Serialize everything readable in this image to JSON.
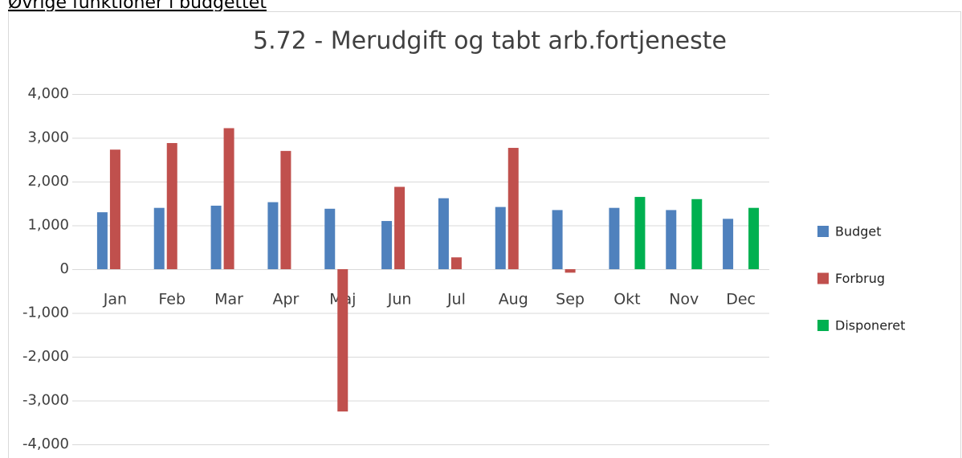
{
  "heading": "Øvrige funktioner i budgettet",
  "chart_data": {
    "type": "bar",
    "title": "5.72 - Merudgift og tabt arb.fortjeneste",
    "categories": [
      "Jan",
      "Feb",
      "Mar",
      "Apr",
      "Maj",
      "Jun",
      "Jul",
      "Aug",
      "Sep",
      "Okt",
      "Nov",
      "Dec"
    ],
    "series": [
      {
        "name": "Budget",
        "color": "#4f81bd",
        "values": [
          1300,
          1400,
          1450,
          1530,
          1380,
          1100,
          1620,
          1420,
          1350,
          1400,
          1350,
          1150
        ]
      },
      {
        "name": "Forbrug",
        "color": "#c0504d",
        "values": [
          2730,
          2880,
          3220,
          2700,
          -3250,
          1880,
          270,
          2770,
          -80,
          null,
          null,
          null
        ]
      },
      {
        "name": "Disponeret",
        "color": "#00b050",
        "values": [
          null,
          null,
          null,
          null,
          null,
          null,
          null,
          null,
          null,
          1650,
          1600,
          1400
        ]
      }
    ],
    "ylim": [
      -4000,
      4000
    ],
    "yticks": [
      {
        "value": -4000,
        "label": "-4,000"
      },
      {
        "value": -3000,
        "label": "-3,000"
      },
      {
        "value": -2000,
        "label": "-2,000"
      },
      {
        "value": -1000,
        "label": "-1,000"
      },
      0,
      {
        "value": 1000,
        "label": "1,000"
      },
      {
        "value": 2000,
        "label": "2,000"
      },
      {
        "value": 3000,
        "label": "3,000"
      },
      {
        "value": 4000,
        "label": "4,000"
      }
    ],
    "grid": true,
    "legend": "right"
  }
}
